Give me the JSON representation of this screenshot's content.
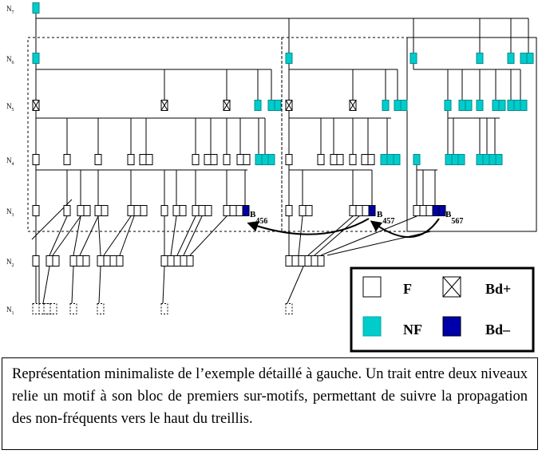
{
  "levels": [
    {
      "name": "N",
      "index": "7"
    },
    {
      "name": "N",
      "index": "6"
    },
    {
      "name": "N",
      "index": "5"
    },
    {
      "name": "N",
      "index": "4"
    },
    {
      "name": "N",
      "index": "3"
    },
    {
      "name": "N",
      "index": "2"
    },
    {
      "name": "N",
      "index": "1"
    }
  ],
  "blocks": [
    {
      "name": "B",
      "index": "456"
    },
    {
      "name": "B",
      "index": "457"
    },
    {
      "name": "B",
      "index": "567"
    }
  ],
  "legend": [
    {
      "label": "F"
    },
    {
      "label": "Bd+"
    },
    {
      "label": "NF"
    },
    {
      "label": "Bd–"
    }
  ],
  "caption": "Représentation minimaliste de l’exemple détaillé à gauche. Un trait entre deux niveaux relie un motif à son bloc de premiers sur-motifs, permettant de suivre la propagation des non-fréquents vers le haut du treillis."
}
